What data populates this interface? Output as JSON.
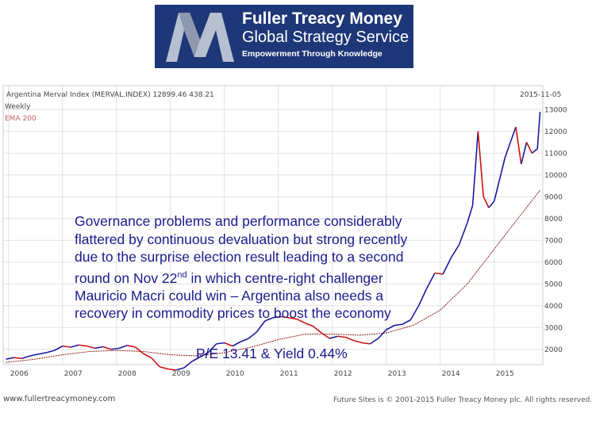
{
  "header": {
    "brand_line1": "Fuller Treacy Money",
    "brand_line2": "Global Strategy Service",
    "tagline": "Empowerment Through Knowledge"
  },
  "chart_data": {
    "type": "line",
    "title": "Argentina Merval Index (MERVAL.INDEX) 12899.46 438.21",
    "date": "2015-11-05",
    "legend": [
      "Weekly",
      "EMA 200"
    ],
    "x_ticks": [
      "2006",
      "2007",
      "2008",
      "2009",
      "2010",
      "2011",
      "2012",
      "2013",
      "2014",
      "2015"
    ],
    "y_ticks": [
      2000,
      3000,
      4000,
      5000,
      6000,
      7000,
      8000,
      9000,
      10000,
      11000,
      12000,
      13000
    ],
    "y_tick_labels": [
      "2000",
      "3000",
      "4000",
      "5000",
      "6000",
      "7000",
      "8000",
      "9000",
      "10000",
      "11000",
      "12000",
      "13000"
    ],
    "ylim": [
      1300,
      13300
    ],
    "xlim": [
      2005.9,
      2015.9
    ],
    "series": [
      {
        "color_up": "#1a1aa0",
        "color_down": "#cc1111",
        "x": [
          2005.95,
          2006.1,
          2006.25,
          2006.4,
          2006.55,
          2006.7,
          2006.85,
          2007.0,
          2007.15,
          2007.3,
          2007.45,
          2007.6,
          2007.75,
          2007.9,
          2008.05,
          2008.2,
          2008.35,
          2008.5,
          2008.65,
          2008.8,
          2008.95,
          2009.1,
          2009.25,
          2009.4,
          2009.55,
          2009.7,
          2009.85,
          2010.0,
          2010.15,
          2010.3,
          2010.45,
          2010.6,
          2010.75,
          2010.9,
          2011.05,
          2011.2,
          2011.35,
          2011.5,
          2011.65,
          2011.8,
          2011.95,
          2012.1,
          2012.25,
          2012.4,
          2012.55,
          2012.7,
          2012.85,
          2013.0,
          2013.15,
          2013.3,
          2013.45,
          2013.6,
          2013.75,
          2013.9,
          2014.05,
          2014.2,
          2014.35,
          2014.5,
          2014.6,
          2014.7,
          2014.8,
          2014.9,
          2015.0,
          2015.1,
          2015.2,
          2015.3,
          2015.4,
          2015.5,
          2015.6,
          2015.7,
          2015.8,
          2015.85
        ],
        "values": [
          1550,
          1620,
          1580,
          1700,
          1780,
          1850,
          1950,
          2150,
          2100,
          2200,
          2150,
          2050,
          2120,
          2000,
          2050,
          2180,
          2100,
          1800,
          1600,
          1200,
          1100,
          1050,
          1150,
          1450,
          1650,
          1850,
          2250,
          2300,
          2150,
          2350,
          2500,
          2800,
          3300,
          3450,
          3500,
          3450,
          3380,
          3200,
          3050,
          2750,
          2500,
          2600,
          2550,
          2400,
          2300,
          2250,
          2500,
          2900,
          3100,
          3150,
          3350,
          4000,
          4800,
          5500,
          5450,
          6200,
          6800,
          7800,
          8600,
          12000,
          9000,
          8500,
          8800,
          9800,
          10800,
          11500,
          12200,
          10500,
          11500,
          11000,
          11200,
          12900
        ]
      },
      {
        "name": "EMA 200",
        "color": "#8b1a1a",
        "x": [
          2005.95,
          2006.5,
          2007.0,
          2007.5,
          2008.0,
          2008.5,
          2009.0,
          2009.5,
          2010.0,
          2010.5,
          2011.0,
          2011.5,
          2012.0,
          2012.5,
          2013.0,
          2013.5,
          2014.0,
          2014.5,
          2015.0,
          2015.5,
          2015.85
        ],
        "values": [
          1400,
          1550,
          1750,
          1900,
          1950,
          1900,
          1750,
          1700,
          1850,
          2100,
          2450,
          2700,
          2700,
          2650,
          2750,
          3100,
          3800,
          5000,
          6600,
          8200,
          9300
        ]
      }
    ],
    "annotation": {
      "lines": [
        "Governance problems and performance considerably",
        " flattered by continuous devaluation but strong recently",
        "due to the surprise election result leading to a second",
        "round on Nov 22",
        "nd",
        " in which centre-right challenger",
        "Mauricio Macri could win – Argentina also needs a",
        "recovery in commodity prices to boost the economy"
      ],
      "pe": "P/E 13.41 & Yield 0.44%"
    }
  },
  "footer": {
    "left": "www.fullertreacymoney.com",
    "right": "Future Sites is © 2001-2015 Fuller Treacy Money plc. All rights reserved."
  }
}
